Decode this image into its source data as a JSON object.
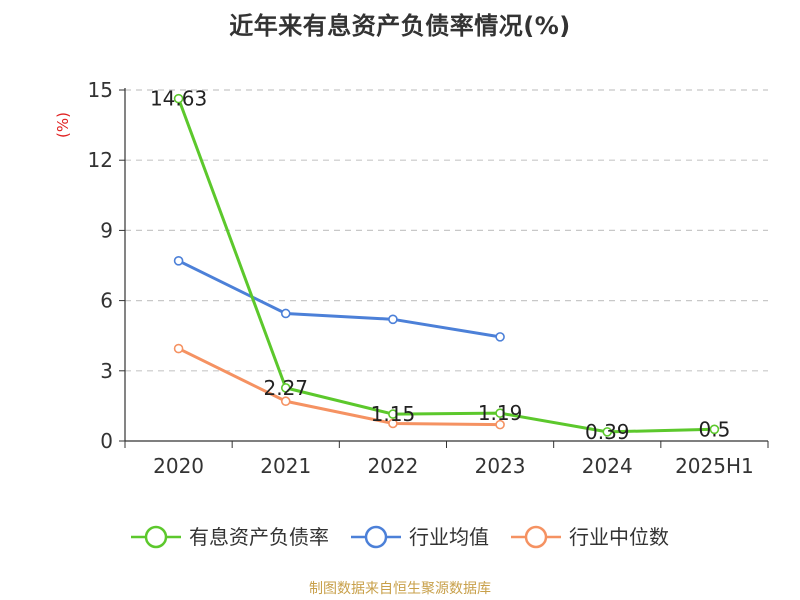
{
  "chart_data": {
    "type": "line",
    "title": "近年来有息资产负债率情况(%)",
    "ylabel": "(%)",
    "categories": [
      "2020",
      "2021",
      "2022",
      "2023",
      "2024",
      "2025H1"
    ],
    "ylim": [
      0,
      15
    ],
    "yticks": [
      0,
      3,
      6,
      9,
      12,
      15
    ],
    "grid": true,
    "legend_position": "bottom",
    "series": [
      {
        "name": "有息资产负债率",
        "color": "#5cc82c",
        "values": [
          14.63,
          2.27,
          1.15,
          1.19,
          0.39,
          0.5
        ],
        "labels": [
          "14.63",
          "2.27",
          "1.15",
          "1.19",
          "0.39",
          "0.5"
        ]
      },
      {
        "name": "行业均值",
        "color": "#4c80d8",
        "values": [
          7.7,
          5.45,
          5.2,
          4.45,
          null,
          null
        ]
      },
      {
        "name": "行业中位数",
        "color": "#f59262",
        "values": [
          3.95,
          1.7,
          0.75,
          0.7,
          null,
          null
        ]
      }
    ]
  },
  "ylabel_color": "#e02020",
  "source": "制图数据来自恒生聚源数据库"
}
